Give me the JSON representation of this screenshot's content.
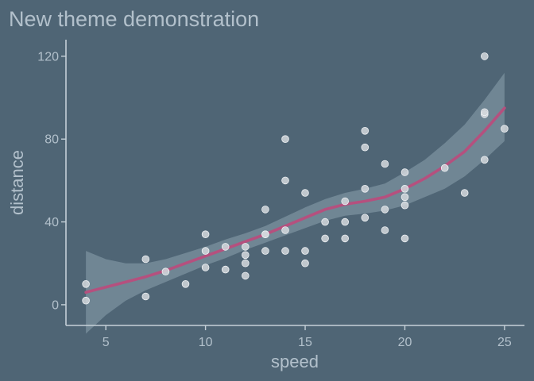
{
  "chart_data": {
    "type": "scatter",
    "title": "New theme demonstration",
    "xlabel": "speed",
    "ylabel": "distance",
    "xlim": [
      3,
      26
    ],
    "ylim": [
      -10,
      128
    ],
    "xticks": [
      5,
      10,
      15,
      20,
      25
    ],
    "yticks": [
      0,
      40,
      80,
      120
    ],
    "grid": false,
    "colors": {
      "background": "#4f6575",
      "text": "#b2c0cb",
      "axis": "#c5d0d8",
      "points": "#d3d8dd",
      "smooth_line": "#b5507e",
      "confidence_band": "#7d93a1"
    },
    "points": [
      [
        4,
        2
      ],
      [
        4,
        10
      ],
      [
        7,
        4
      ],
      [
        7,
        22
      ],
      [
        8,
        16
      ],
      [
        9,
        10
      ],
      [
        10,
        18
      ],
      [
        10,
        26
      ],
      [
        10,
        34
      ],
      [
        11,
        17
      ],
      [
        11,
        28
      ],
      [
        12,
        14
      ],
      [
        12,
        20
      ],
      [
        12,
        24
      ],
      [
        12,
        28
      ],
      [
        13,
        26
      ],
      [
        13,
        34
      ],
      [
        13,
        34
      ],
      [
        13,
        46
      ],
      [
        14,
        26
      ],
      [
        14,
        36
      ],
      [
        14,
        60
      ],
      [
        14,
        80
      ],
      [
        15,
        20
      ],
      [
        15,
        26
      ],
      [
        15,
        54
      ],
      [
        16,
        32
      ],
      [
        16,
        40
      ],
      [
        17,
        32
      ],
      [
        17,
        40
      ],
      [
        17,
        50
      ],
      [
        18,
        42
      ],
      [
        18,
        56
      ],
      [
        18,
        76
      ],
      [
        18,
        84
      ],
      [
        19,
        36
      ],
      [
        19,
        46
      ],
      [
        19,
        68
      ],
      [
        20,
        32
      ],
      [
        20,
        48
      ],
      [
        20,
        52
      ],
      [
        20,
        56
      ],
      [
        20,
        64
      ],
      [
        22,
        66
      ],
      [
        23,
        54
      ],
      [
        24,
        70
      ],
      [
        24,
        92
      ],
      [
        24,
        93
      ],
      [
        24,
        120
      ],
      [
        25,
        85
      ]
    ],
    "smooth": {
      "method": "loess",
      "x": [
        4,
        5,
        6,
        7,
        8,
        9,
        10,
        11,
        12,
        13,
        14,
        15,
        16,
        17,
        18,
        19,
        20,
        21,
        22,
        23,
        24,
        25
      ],
      "y": [
        6,
        8.5,
        11,
        13.5,
        16.5,
        20,
        23.5,
        27,
        30.5,
        34,
        38,
        42,
        46,
        48.5,
        50,
        52,
        56,
        61,
        67,
        74,
        84,
        95
      ],
      "lower": [
        -14,
        -5,
        2,
        7,
        11,
        15,
        19,
        22.5,
        26.5,
        30,
        33.5,
        37,
        40.5,
        43,
        44,
        45.5,
        48,
        52,
        56,
        62,
        70,
        79
      ],
      "upper": [
        26,
        22,
        20,
        20,
        22,
        25,
        28,
        31.5,
        34.5,
        38,
        42.5,
        47,
        51,
        54,
        56,
        58.5,
        64,
        70,
        78,
        87,
        99,
        112
      ]
    }
  }
}
